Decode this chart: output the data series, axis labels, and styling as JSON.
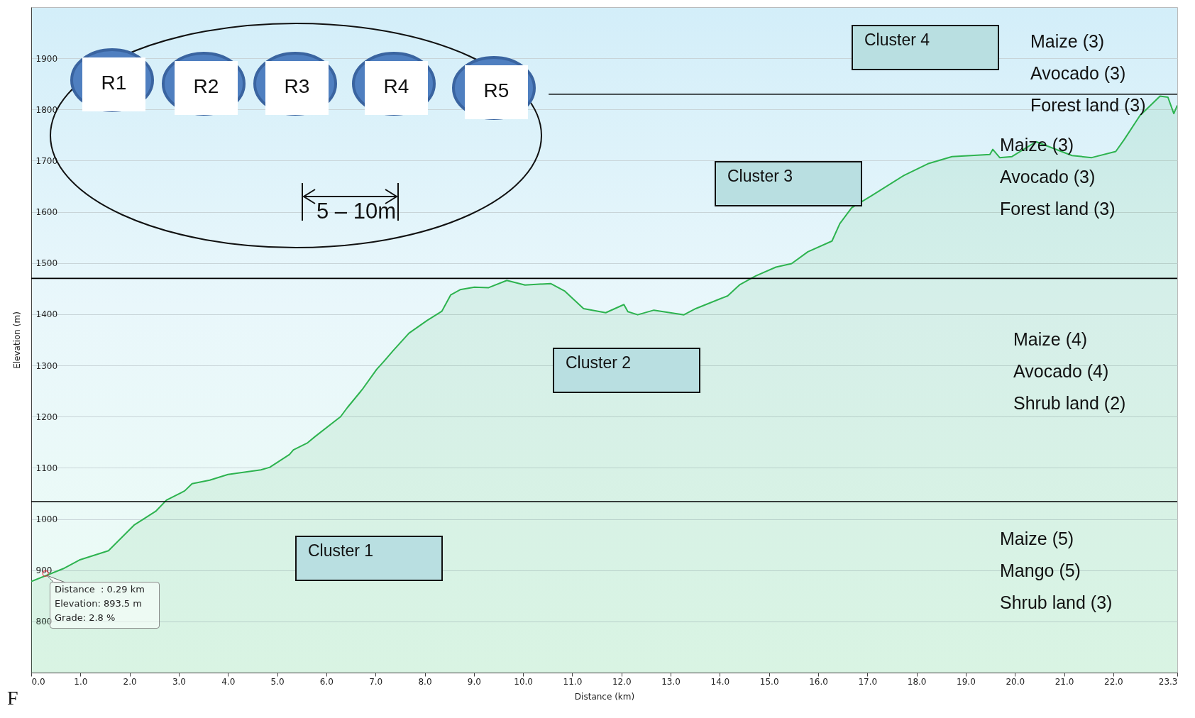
{
  "chart_data": {
    "type": "area",
    "xlabel": "Distance (km)",
    "ylabel": "Elevation (m)",
    "xlim": [
      0,
      23.3
    ],
    "ylim": [
      700,
      2000
    ],
    "xticks": [
      {
        "value": 0,
        "label": "0.0"
      },
      {
        "value": 1,
        "label": "1.0"
      },
      {
        "value": 2,
        "label": "2.0"
      },
      {
        "value": 3,
        "label": "3.0"
      },
      {
        "value": 4,
        "label": "4.0"
      },
      {
        "value": 5,
        "label": "5.0"
      },
      {
        "value": 6,
        "label": "6.0"
      },
      {
        "value": 7,
        "label": "7.0"
      },
      {
        "value": 8,
        "label": "8.0"
      },
      {
        "value": 9,
        "label": "9.0"
      },
      {
        "value": 10,
        "label": "10.0"
      },
      {
        "value": 11,
        "label": "11.0"
      },
      {
        "value": 12,
        "label": "12.0"
      },
      {
        "value": 13,
        "label": "13.0"
      },
      {
        "value": 14,
        "label": "14.0"
      },
      {
        "value": 15,
        "label": "15.0"
      },
      {
        "value": 16,
        "label": "16.0"
      },
      {
        "value": 17,
        "label": "17.0"
      },
      {
        "value": 18,
        "label": "18.0"
      },
      {
        "value": 19,
        "label": "19.0"
      },
      {
        "value": 20,
        "label": "20.0"
      },
      {
        "value": 21,
        "label": "21.0"
      },
      {
        "value": 22,
        "label": "22.0"
      },
      {
        "value": 23.3,
        "label": "23.3"
      }
    ],
    "yticks": [
      800,
      900,
      1000,
      1100,
      1200,
      1300,
      1400,
      1500,
      1600,
      1700,
      1800,
      1900
    ],
    "grid": "y",
    "series": [
      {
        "color": "#2db34f",
        "x": [
          0,
          0.65,
          0.98,
          1.57,
          2.09,
          2.53,
          2.75,
          3.12,
          3.27,
          3.63,
          4.0,
          4.67,
          4.85,
          5.25,
          5.33,
          5.62,
          5.77,
          6.29,
          6.43,
          6.73,
          7.02,
          7.17,
          7.35,
          7.68,
          8.05,
          8.35,
          8.53,
          8.72,
          9.01,
          9.3,
          9.67,
          10.04,
          10.56,
          10.85,
          11.23,
          11.68,
          12.05,
          12.13,
          12.33,
          12.66,
          13.27,
          13.51,
          14.16,
          14.41,
          14.73,
          15.14,
          15.46,
          15.79,
          16.28,
          16.44,
          16.68,
          17.09,
          17.74,
          18.23,
          18.72,
          19.49,
          19.55,
          19.69,
          19.94,
          20.43,
          21.16,
          21.56,
          22.05,
          22.22,
          22.54,
          22.95,
          23.11,
          23.23,
          23.3
        ],
        "values": [
          878,
          903,
          920,
          938,
          988,
          1015,
          1037,
          1055,
          1069,
          1076,
          1087,
          1096,
          1101,
          1126,
          1135,
          1149,
          1161,
          1200,
          1218,
          1253,
          1292,
          1308,
          1328,
          1363,
          1388,
          1406,
          1438,
          1448,
          1453,
          1452,
          1466,
          1457,
          1460,
          1445,
          1411,
          1403,
          1419,
          1405,
          1399,
          1408,
          1399,
          1411,
          1436,
          1458,
          1475,
          1492,
          1499,
          1522,
          1543,
          1577,
          1608,
          1632,
          1671,
          1694,
          1708,
          1712,
          1722,
          1706,
          1708,
          1737,
          1710,
          1706,
          1718,
          1741,
          1788,
          1826,
          1824,
          1792,
          1808
        ]
      },
      {
        "type": "line",
        "color": "#000000",
        "x": [
          10.52,
          23.3
        ],
        "values": [
          1830,
          1830
        ]
      }
    ],
    "ref_lines": [
      {
        "axis": "y",
        "value": 1034,
        "color": "#000000"
      },
      {
        "axis": "y",
        "value": 1470,
        "color": "#000000"
      }
    ],
    "annotations": [
      "Cluster 1",
      "Cluster 2",
      "Cluster 3",
      "Cluster 4",
      "Maize (5)",
      "Mango (5)",
      "Shrub land (3)",
      "Maize (4)",
      "Avocado (4)",
      "Shrub land (2)",
      "Maize (3)",
      "Avocado (3)",
      "Forest land (3)",
      "Maize (3)",
      "Avocado (3)",
      "Forest land (3)",
      {
        "text": "Distance  : 0.29 km\nElevation: 893.5 m\nGrade: 2.8 %",
        "x": 0.29,
        "y": 893.5
      },
      "R1",
      "R2",
      "R3",
      "R4",
      "R5",
      "5 – 10m",
      "F"
    ]
  }
}
